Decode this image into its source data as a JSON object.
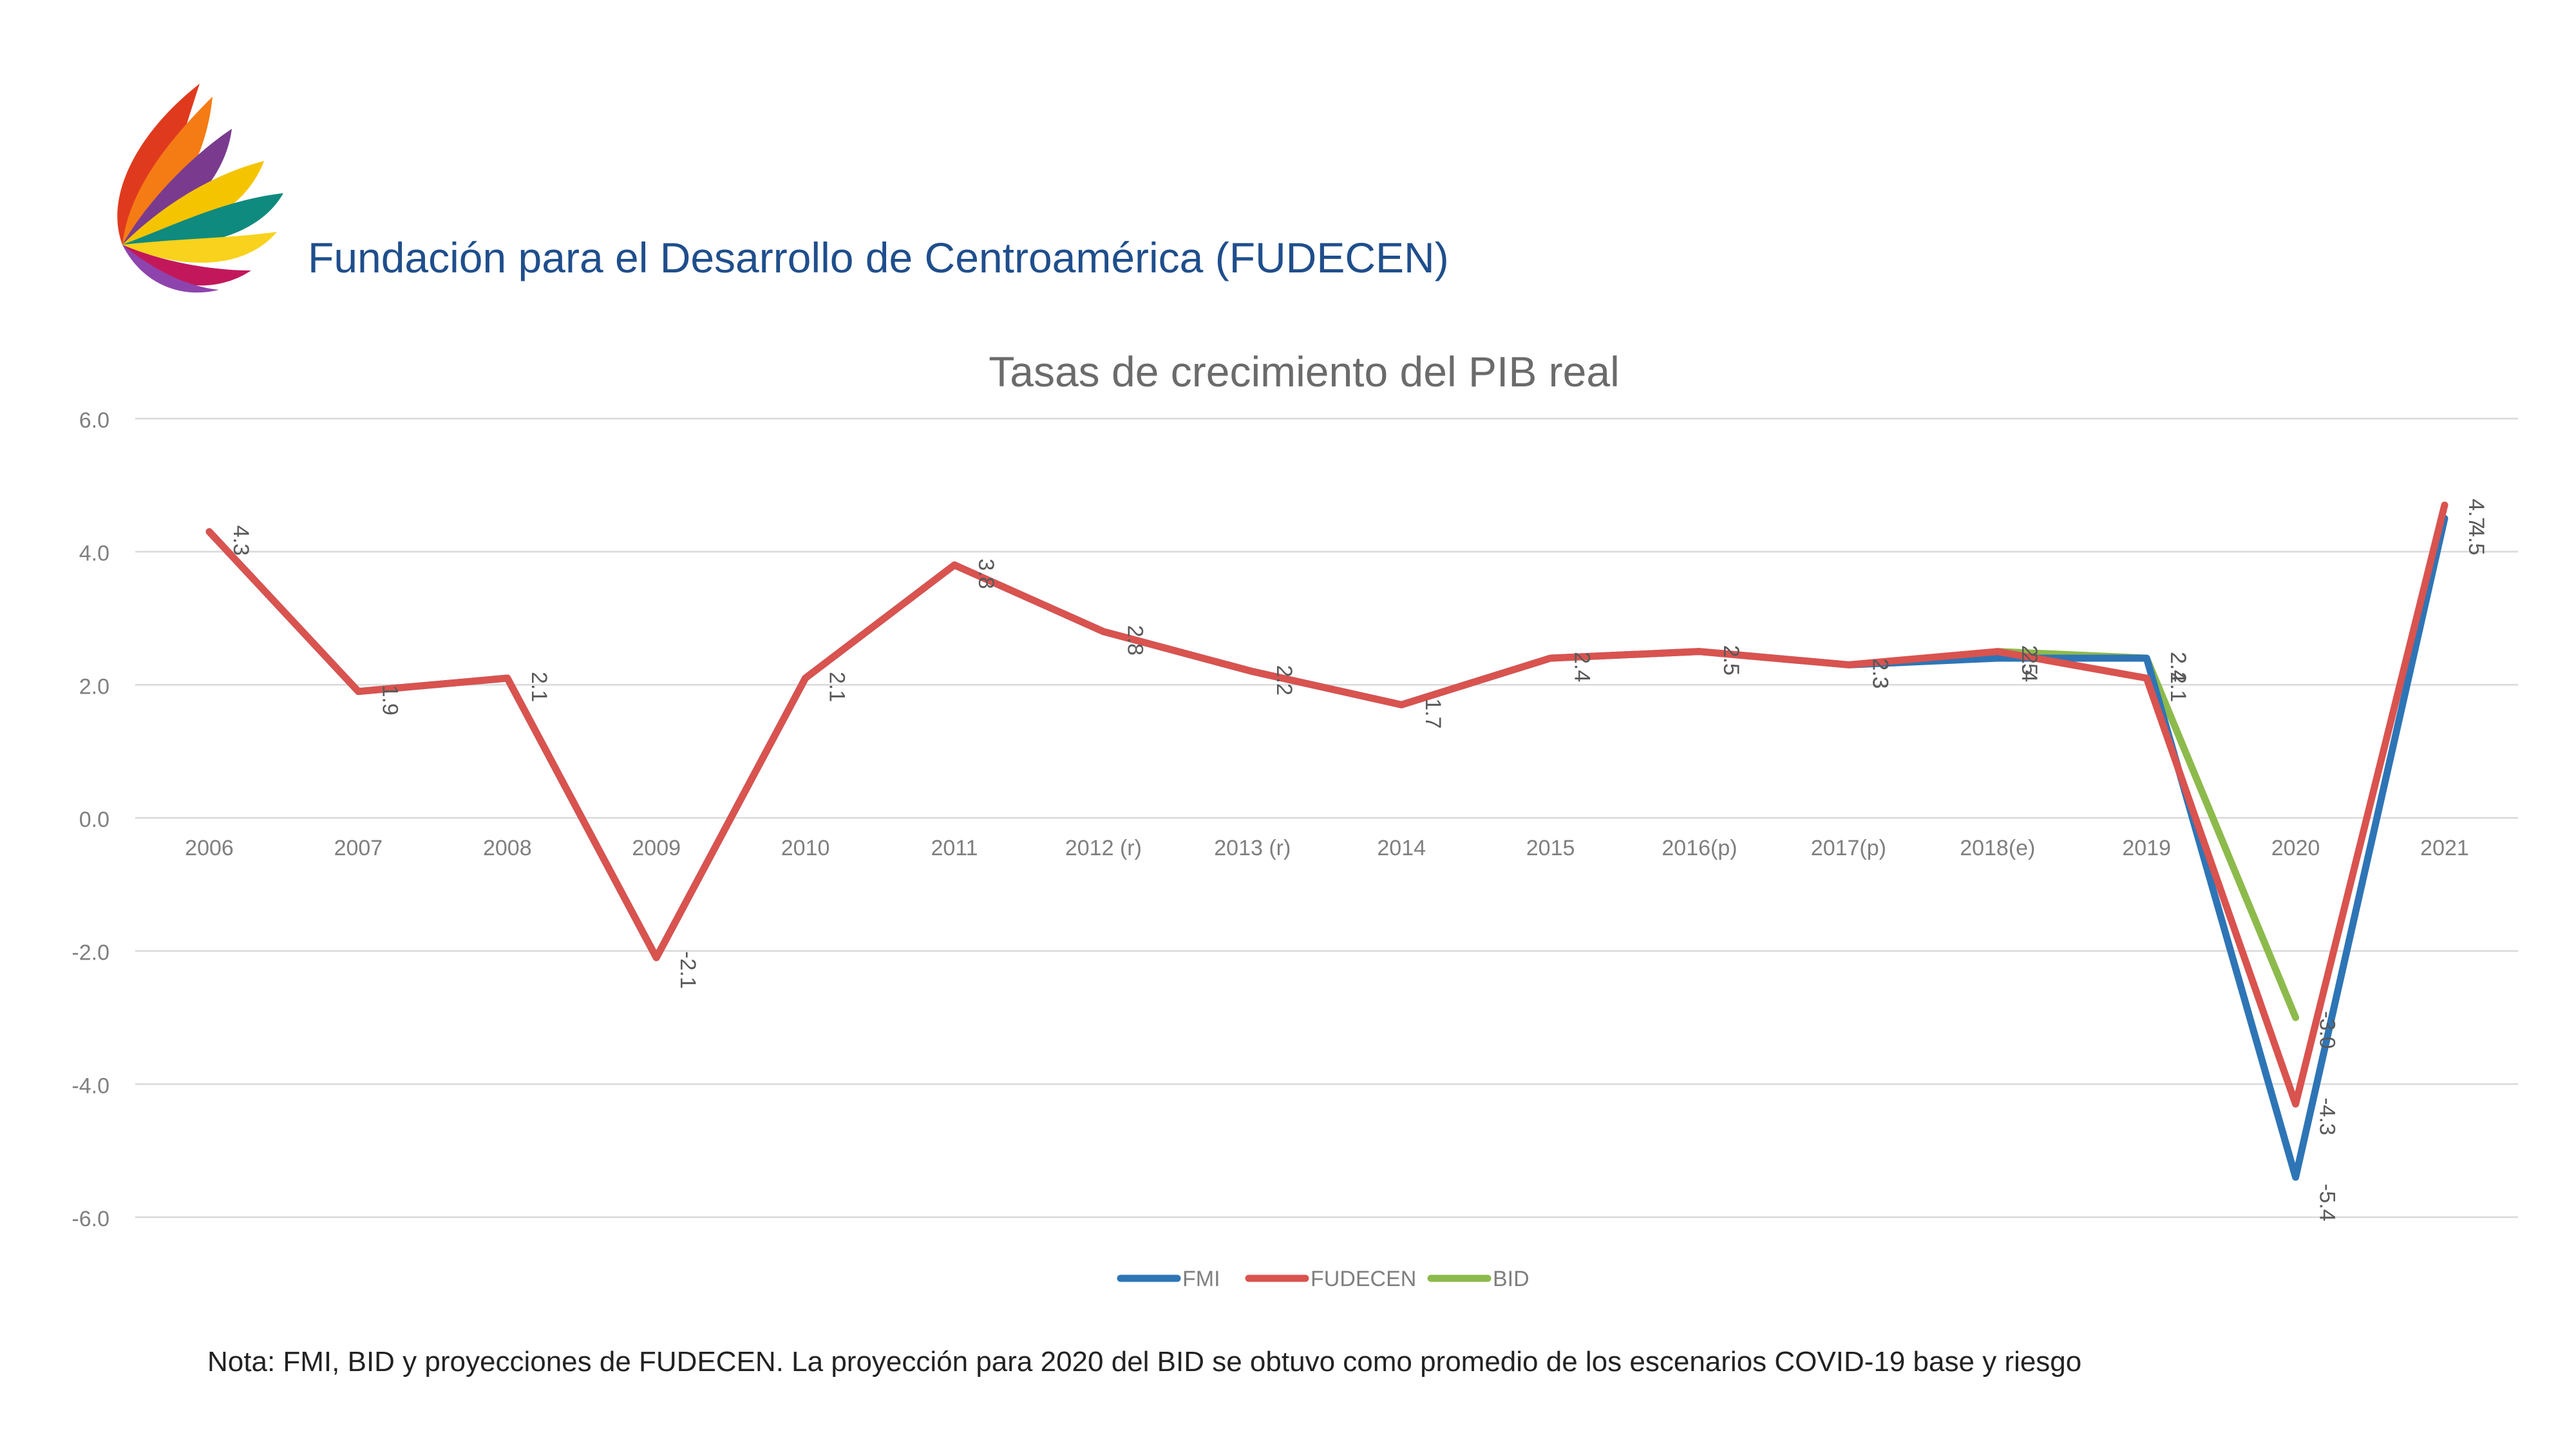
{
  "header": {
    "org_title": "Fundación para el Desarrollo de Centroamérica (FUDECEN)"
  },
  "note": "Nota: FMI, BID y proyecciones de FUDECEN.  La proyección para 2020 del BID se obtuvo como promedio de los escenarios COVID-19 base y riesgo",
  "colors": {
    "FMI": "#2e75b6",
    "FUDECEN": "#d9534f",
    "BID": "#8dba4c",
    "gridline": "#d9d9d9",
    "axis_text": "#7f7f7f",
    "title_text": "#6b6b6b"
  },
  "chart_data": {
    "type": "line",
    "title": "Tasas de crecimiento del PIB real",
    "xlabel": "",
    "ylabel": "",
    "ylim": [
      -6,
      6
    ],
    "yticks": [
      "6.0",
      "4.0",
      "2.0",
      "0.0",
      "-2.0",
      "-4.0",
      "-6.0"
    ],
    "grid": true,
    "legend_position": "bottom",
    "categories": [
      "2006",
      "2007",
      "2008",
      "2009",
      "2010",
      "2011",
      "2012 (r)",
      "2013 (r)",
      "2014",
      "2015",
      "2016(p)",
      "2017(p)",
      "2018(e)",
      "2019",
      "2020",
      "2021"
    ],
    "series": [
      {
        "name": "FMI",
        "values": [
          4.3,
          1.9,
          2.1,
          -2.1,
          2.1,
          3.8,
          2.8,
          2.2,
          1.7,
          2.4,
          2.5,
          2.3,
          2.4,
          2.4,
          -5.4,
          4.5
        ],
        "labels": [
          null,
          null,
          null,
          null,
          null,
          null,
          null,
          null,
          null,
          null,
          "2.5",
          "2.3",
          "2.4",
          "2.4",
          "-5.4",
          "4.5"
        ]
      },
      {
        "name": "FUDECEN",
        "values": [
          4.3,
          1.9,
          2.1,
          -2.1,
          2.1,
          3.8,
          2.8,
          2.2,
          1.7,
          2.4,
          2.5,
          2.3,
          2.5,
          2.1,
          -4.3,
          4.7
        ],
        "labels": [
          "4.3",
          "1.9",
          "2.1",
          "-2.1",
          "2.1",
          "3.8",
          "2.8",
          "2.2",
          "1.7",
          "2.4",
          "2.5",
          "2.3",
          "2.5",
          "2.1",
          "-4.3",
          "4.7"
        ]
      },
      {
        "name": "BID",
        "values": [
          null,
          null,
          null,
          null,
          null,
          null,
          null,
          null,
          null,
          null,
          null,
          null,
          2.5,
          2.4,
          -3.0,
          null
        ],
        "labels": [
          null,
          null,
          null,
          null,
          null,
          null,
          null,
          null,
          null,
          null,
          null,
          null,
          null,
          "2.4",
          "-3.0",
          null
        ]
      }
    ]
  }
}
